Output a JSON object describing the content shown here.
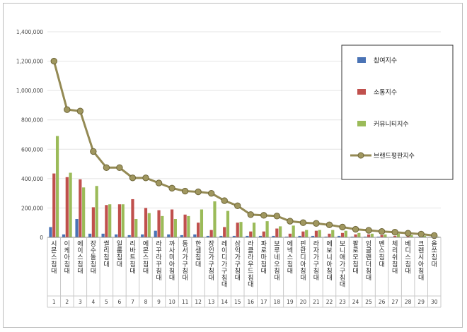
{
  "chart_data": {
    "type": "bar",
    "title": "",
    "xlabel": "",
    "ylabel": "",
    "ylim": [
      0,
      1400000
    ],
    "yticks": [
      "0",
      "200,000",
      "400,000",
      "600,000",
      "800,000",
      "1,000,000",
      "1,200,000",
      "1,400,000"
    ],
    "ytick_values": [
      0,
      200000,
      400000,
      600000,
      800000,
      1000000,
      1200000,
      1400000
    ],
    "grid": true,
    "legend_position": "top-right",
    "ranks": [
      "1",
      "2",
      "3",
      "4",
      "5",
      "6",
      "7",
      "8",
      "9",
      "10",
      "11",
      "12",
      "13",
      "14",
      "15",
      "16",
      "17",
      "18",
      "19",
      "20",
      "21",
      "22",
      "23",
      "24",
      "25",
      "26",
      "27",
      "28",
      "29",
      "30"
    ],
    "categories": [
      "시몬스침대",
      "이케아침대",
      "에이스침대",
      "장수돌침대",
      "썰리침대",
      "일룸침대",
      "리바트침대",
      "에몬스침대",
      "라꾸라꾸침대",
      "까사미아침대",
      "동서가구침대",
      "한샘침대",
      "장인가구침대",
      "레이디가구침대",
      "삼익가구침대",
      "라클라우드침대",
      "파로마침대",
      "보루네오침대",
      "에넥스침대",
      "핀란디아침대",
      "라자가구침대",
      "에보니아침대",
      "보니애가구침대",
      "팔로모침대",
      "잉글랜더침대",
      "벤스침대",
      "체리쉬침대",
      "베디스침대",
      "크렌시아침대",
      "올쏘침대"
    ],
    "series": [
      {
        "name": "참여지수",
        "kind": "bar",
        "color": "#4a73b5",
        "values": [
          70000,
          20000,
          125000,
          25000,
          25000,
          20000,
          15000,
          20000,
          45000,
          20000,
          15000,
          20000,
          10000,
          10000,
          10000,
          10000,
          10000,
          10000,
          5000,
          10000,
          10000,
          5000,
          10000,
          5000,
          5000,
          5000,
          3000,
          3000,
          3000,
          2000
        ]
      },
      {
        "name": "소통지수",
        "kind": "bar",
        "color": "#c0504d",
        "values": [
          435000,
          410000,
          395000,
          205000,
          220000,
          225000,
          260000,
          200000,
          185000,
          190000,
          155000,
          100000,
          50000,
          70000,
          100000,
          40000,
          40000,
          60000,
          25000,
          40000,
          45000,
          25000,
          30000,
          20000,
          20000,
          15000,
          10000,
          10000,
          5000,
          3000
        ]
      },
      {
        "name": "커뮤니티지수",
        "kind": "bar",
        "color": "#9bbb59",
        "values": [
          690000,
          440000,
          340000,
          350000,
          225000,
          225000,
          125000,
          165000,
          145000,
          125000,
          145000,
          190000,
          245000,
          180000,
          105000,
          100000,
          110000,
          75000,
          80000,
          50000,
          50000,
          50000,
          45000,
          30000,
          25000,
          20000,
          25000,
          15000,
          10000,
          5000
        ]
      },
      {
        "name": "브랜드평판지수",
        "kind": "line",
        "color": "#948a54",
        "values": [
          1200000,
          870000,
          860000,
          585000,
          475000,
          475000,
          405000,
          405000,
          370000,
          335000,
          315000,
          310000,
          300000,
          250000,
          215000,
          155000,
          150000,
          145000,
          110000,
          100000,
          95000,
          85000,
          70000,
          55000,
          48000,
          40000,
          35000,
          28000,
          22000,
          12000
        ]
      }
    ]
  }
}
